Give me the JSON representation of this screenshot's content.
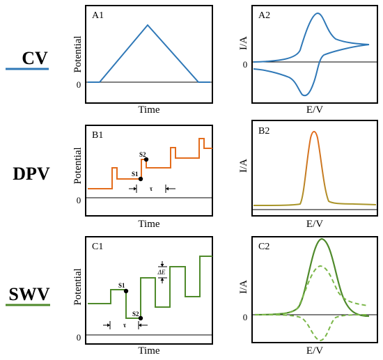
{
  "colors": {
    "cv": "#2f78b7",
    "dpv_orange": "#e36c1c",
    "dpv_olive": "#a8962a",
    "swv": "#4f8a2b",
    "swv_light": "#7ab648",
    "axis": "#000000"
  },
  "rows": [
    {
      "id": "cv",
      "method": "CV"
    },
    {
      "id": "dpv",
      "method": "DPV"
    },
    {
      "id": "swv",
      "method": "SWV"
    }
  ],
  "panels": {
    "A1": {
      "label": "A1",
      "ylabel": "Potential",
      "xlabel": "Time",
      "zero": "0"
    },
    "A2": {
      "label": "A2",
      "ylabel": "I/A",
      "xlabel": "E/V",
      "zero": "0"
    },
    "B1": {
      "label": "B1",
      "ylabel": "Potential",
      "xlabel": "Time",
      "zero": "0",
      "s1": "S1",
      "s2": "S2",
      "tau": "τ"
    },
    "B2": {
      "label": "B2",
      "ylabel": "I/A",
      "xlabel": "E/V"
    },
    "C1": {
      "label": "C1",
      "ylabel": "Potential",
      "xlabel": "Time",
      "zero": "0",
      "s1": "S1",
      "s2": "S2",
      "tau": "τ",
      "delta_e": "ΔE"
    },
    "C2": {
      "label": "C2",
      "ylabel": "I/A",
      "xlabel": "E/V",
      "zero": "0"
    }
  }
}
